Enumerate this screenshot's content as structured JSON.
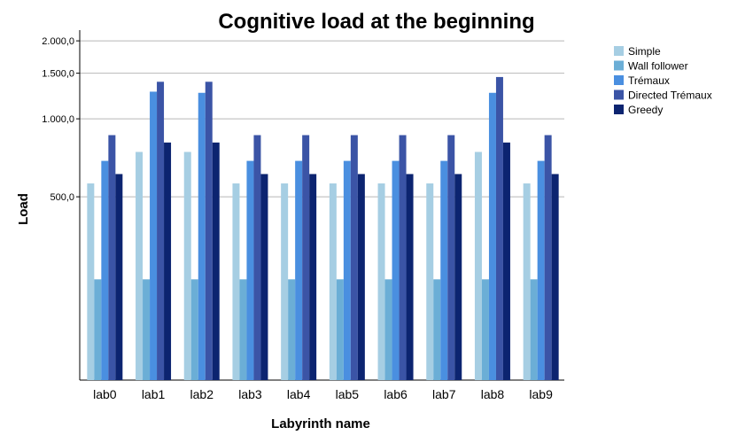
{
  "chart_data": {
    "type": "bar",
    "title": "Cognitive load at the beginning",
    "xlabel": "Labyrinth name",
    "ylabel": "Load",
    "scale": "log",
    "ylim": [
      98,
      2200
    ],
    "yticks": [
      500,
      1000,
      1500,
      2000
    ],
    "ytick_labels": [
      "500,0",
      "1.000,0",
      "1.500,0",
      "2.000,0"
    ],
    "grid": true,
    "legend_position": "top-right",
    "categories": [
      "lab0",
      "lab1",
      "lab2",
      "lab3",
      "lab4",
      "lab5",
      "lab6",
      "lab7",
      "lab8",
      "lab9"
    ],
    "series": [
      {
        "name": "Simple",
        "color": "#a6cee3",
        "values": [
          563,
          745,
          745,
          563,
          563,
          563,
          563,
          563,
          745,
          563
        ]
      },
      {
        "name": "Wall follower",
        "color": "#6baed6",
        "values": [
          240,
          240,
          240,
          240,
          240,
          240,
          240,
          240,
          240,
          240
        ]
      },
      {
        "name": "Trémaux",
        "color": "#4a8fe0",
        "values": [
          688,
          1273,
          1260,
          688,
          688,
          688,
          688,
          688,
          1260,
          688
        ]
      },
      {
        "name": "Directed Trémaux",
        "color": "#3b54a6",
        "values": [
          865,
          1390,
          1390,
          865,
          865,
          865,
          865,
          865,
          1450,
          865
        ]
      },
      {
        "name": "Greedy",
        "color": "#0c2470",
        "values": [
          612,
          810,
          810,
          612,
          612,
          612,
          612,
          612,
          810,
          612
        ]
      }
    ]
  }
}
